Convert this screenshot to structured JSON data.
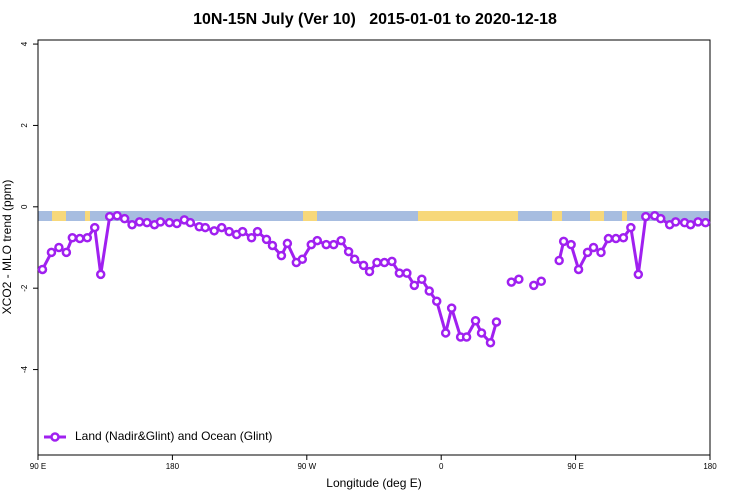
{
  "chart_data": {
    "type": "line",
    "title": "10N-15N July (Ver 10)   2015-01-01 to 2020-12-18",
    "xlabel": "Longitude (deg E)",
    "ylabel": "XCO2 - MLO trend (ppm)",
    "xlim": [
      90,
      540
    ],
    "xticks": [
      {
        "value": 90,
        "label": "90 E"
      },
      {
        "value": 180,
        "label": "180"
      },
      {
        "value": 270,
        "label": "90 W"
      },
      {
        "value": 360,
        "label": "0"
      },
      {
        "value": 450,
        "label": "90 E"
      },
      {
        "value": 540,
        "label": "180"
      }
    ],
    "ylim": [
      -6.1,
      4.1
    ],
    "yticks": [
      -4,
      -2,
      0,
      2,
      4
    ],
    "legend": "bottom-left",
    "x": [
      93,
      99,
      104,
      109,
      113,
      118,
      123,
      128,
      132,
      138,
      143,
      148,
      153,
      158,
      163,
      168,
      172,
      178,
      183,
      188,
      192,
      198,
      202,
      208,
      213,
      218,
      223,
      227,
      233,
      237,
      243,
      247,
      253,
      257,
      263,
      267,
      273,
      277,
      283,
      288,
      293,
      298,
      302,
      308,
      312,
      317,
      322,
      327,
      332,
      337,
      342,
      347,
      352,
      357,
      363,
      367,
      373,
      377,
      383,
      387,
      393,
      397,
      402,
      407,
      412,
      417,
      422,
      427,
      432,
      439,
      442,
      447,
      452,
      458,
      462,
      467,
      472,
      477,
      482,
      487,
      492,
      497,
      503,
      507,
      513,
      517,
      523,
      527,
      532,
      537
    ],
    "series": [
      {
        "name": "Land (Nadir&Glint) and Ocean (Glint)",
        "color": "#a020f0",
        "values": [
          -1.54,
          -1.12,
          -1.0,
          -1.12,
          -0.76,
          -0.78,
          -0.76,
          -0.51,
          -1.66,
          -0.24,
          -0.22,
          -0.29,
          -0.44,
          -0.37,
          -0.39,
          -0.44,
          -0.37,
          -0.39,
          -0.41,
          -0.32,
          -0.39,
          -0.49,
          -0.51,
          -0.59,
          -0.51,
          -0.61,
          -0.68,
          -0.61,
          -0.76,
          -0.61,
          -0.8,
          -0.95,
          -1.2,
          -0.9,
          -1.37,
          -1.29,
          -0.93,
          -0.83,
          -0.93,
          -0.93,
          -0.83,
          -1.1,
          -1.29,
          -1.44,
          -1.59,
          -1.37,
          -1.37,
          -1.34,
          -1.63,
          -1.63,
          -1.93,
          -1.78,
          -2.07,
          -2.32,
          -3.1,
          -2.49,
          -3.2,
          -3.2,
          -2.8,
          -3.1,
          -3.34,
          -2.83,
          null,
          -1.85,
          -1.78,
          null,
          -1.93,
          -1.83,
          null,
          -1.32,
          -0.85,
          -0.93,
          -1.54,
          -1.12,
          -1.0,
          -1.12,
          -0.78,
          -0.78,
          -0.76,
          -0.51,
          -1.66,
          -0.24,
          -0.22,
          -0.29,
          -0.44,
          -0.37,
          -0.39,
          -0.44,
          -0.37,
          -0.39
        ]
      }
    ]
  }
}
